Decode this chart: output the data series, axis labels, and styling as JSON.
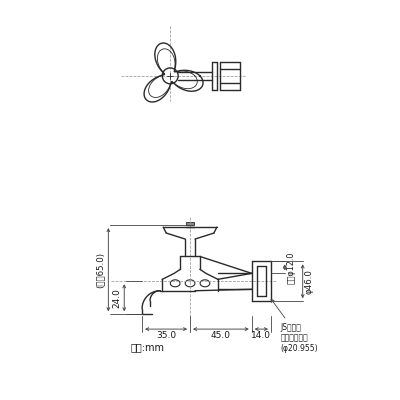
{
  "bg_color": "#ffffff",
  "line_color": "#2a2a2a",
  "dim_color": "#444444",
  "text_color": "#1a1a1a",
  "unit_label": "単位:mm",
  "dim_35": "35.0",
  "dim_45": "45.0",
  "dim_14": "14.0",
  "dim_24": "24.0",
  "dim_65": "(最大65.0)",
  "dim_phi12": "内径φ12.0",
  "dim_phi46": "φ46.0",
  "dim_js": "JS給水栖\n取付ねじ１３\n(φ20.955)"
}
